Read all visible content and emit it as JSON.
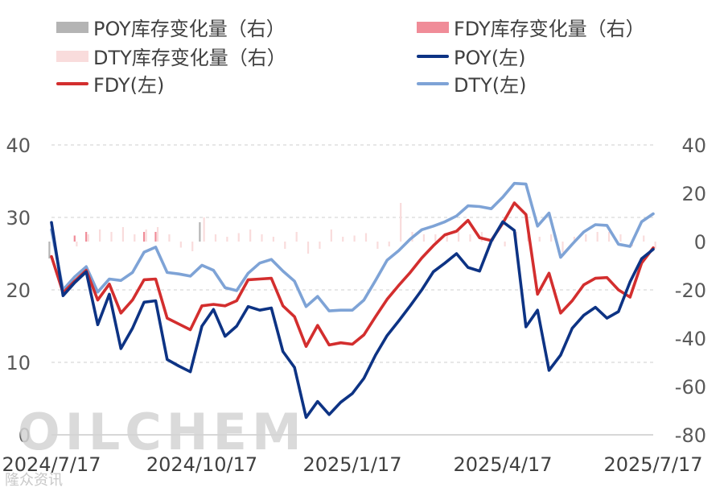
{
  "chart_data": {
    "type": "line",
    "legend": [
      {
        "name": "POY库存变化量（右）",
        "kind": "bar",
        "color": "#b4b4b4"
      },
      {
        "name": "FDY库存变化量（右）",
        "kind": "bar",
        "color": "#f08c98"
      },
      {
        "name": "DTY库存变化量（右）",
        "kind": "bar",
        "color": "#f9dcdc"
      },
      {
        "name": "POY(左)",
        "kind": "line",
        "color": "#0d3384"
      },
      {
        "name": "FDY(左)",
        "kind": "line",
        "color": "#d32e2e"
      },
      {
        "name": "DTY(左)",
        "kind": "line",
        "color": "#7ea3d6"
      }
    ],
    "left_axis": {
      "ylim": [
        0,
        40
      ],
      "ticks": [
        "0",
        "10",
        "20",
        "30",
        "40"
      ]
    },
    "right_axis": {
      "ylim": [
        -80,
        40
      ],
      "ticks": [
        "-80",
        "-60",
        "-40",
        "-20",
        "0",
        "20",
        "40"
      ]
    },
    "x_ticks": [
      "2024/7/17",
      "2024/10/17",
      "2025/1/17",
      "2025/4/17",
      "2025/7/17"
    ],
    "x_range": [
      0,
      52
    ],
    "x_tick_positions": [
      0,
      13,
      26,
      39,
      52
    ],
    "series": [
      {
        "name": "POY(左)",
        "axis": "left",
        "color": "#0d3384",
        "values": [
          29.3,
          19.2,
          21.0,
          22.5,
          15.2,
          19.4,
          11.9,
          14.7,
          18.3,
          18.5,
          10.4,
          9.5,
          8.7,
          15.0,
          17.3,
          13.6,
          15.0,
          17.7,
          17.2,
          17.5,
          11.5,
          9.3,
          2.4,
          4.6,
          2.8,
          4.5,
          5.7,
          7.8,
          11.0,
          13.7,
          15.7,
          17.8,
          20.0,
          22.5,
          23.7,
          25.0,
          23.1,
          22.6,
          26.7,
          29.4,
          28.2,
          14.9,
          17.2,
          8.9,
          11.0,
          14.7,
          16.5,
          17.6,
          16.1,
          17.0,
          21.1,
          24.3,
          25.6
        ]
      },
      {
        "name": "FDY(左)",
        "axis": "left",
        "color": "#d32e2e",
        "values": [
          24.6,
          19.6,
          21.2,
          22.7,
          18.6,
          20.8,
          16.8,
          18.6,
          21.4,
          21.5,
          16.1,
          15.3,
          14.5,
          17.8,
          18.0,
          17.8,
          18.5,
          21.4,
          21.5,
          21.6,
          17.8,
          16.3,
          12.2,
          15.1,
          12.4,
          12.7,
          12.5,
          13.8,
          16.3,
          18.7,
          20.6,
          22.4,
          24.4,
          26.1,
          27.6,
          28.1,
          29.6,
          27.2,
          26.8,
          29.2,
          32.0,
          30.4,
          19.4,
          22.3,
          16.8,
          18.5,
          20.7,
          21.6,
          21.7,
          20.0,
          19.0,
          23.7,
          25.8
        ]
      },
      {
        "name": "DTY(左)",
        "axis": "left",
        "color": "#7ea3d6",
        "values": [
          28.3,
          20.0,
          21.8,
          23.2,
          19.7,
          21.5,
          21.3,
          22.4,
          25.2,
          25.9,
          22.4,
          22.2,
          21.9,
          23.4,
          22.7,
          20.3,
          19.9,
          22.3,
          23.7,
          24.2,
          22.6,
          21.2,
          17.7,
          19.1,
          17.1,
          17.2,
          17.2,
          18.6,
          21.3,
          24.1,
          25.4,
          27.0,
          28.3,
          28.8,
          29.4,
          30.2,
          31.6,
          31.5,
          31.2,
          32.8,
          34.7,
          34.6,
          28.8,
          30.6,
          24.5,
          26.3,
          28.0,
          29.0,
          28.9,
          26.3,
          26.0,
          29.4,
          30.5
        ]
      },
      {
        "name": "POY库存变化量（右）",
        "axis": "right",
        "color": "#b4b4b4",
        "values": [
          -7.0,
          0,
          0,
          0,
          0,
          0,
          0,
          0,
          0,
          0,
          0,
          0,
          0,
          8.0,
          0,
          0,
          0,
          0,
          0,
          0,
          0,
          0,
          0,
          0,
          0,
          0,
          0,
          0,
          0,
          0,
          0,
          0,
          0,
          0,
          0,
          0,
          0,
          0,
          0,
          0,
          0,
          0,
          0,
          0,
          0,
          0,
          0,
          0,
          0,
          0,
          0,
          0,
          0
        ]
      },
      {
        "name": "FDY库存变化量（右）",
        "axis": "right",
        "color": "#f08c98",
        "values": [
          0,
          0,
          2.5,
          4.0,
          0,
          0,
          0,
          0,
          4.0,
          4.0,
          0,
          0,
          0,
          0,
          0,
          0,
          0,
          0,
          0,
          0,
          0,
          0,
          0,
          0,
          0,
          0,
          0,
          0,
          0,
          0,
          0,
          0,
          0,
          0,
          0,
          0,
          0,
          0,
          0,
          0,
          0,
          0,
          0,
          0,
          0,
          0,
          0,
          0,
          0,
          0,
          0,
          0,
          0
        ]
      },
      {
        "name": "DTY库存变化量（右）",
        "axis": "right",
        "color": "#f9dcdc",
        "values": [
          -2.0,
          0,
          -2.0,
          3.0,
          5.0,
          4.0,
          6.0,
          3.0,
          5.0,
          6.0,
          3.0,
          -2.5,
          -4.0,
          10.0,
          3.0,
          2.0,
          3.5,
          5.0,
          3.0,
          2.0,
          -3.0,
          4.0,
          -5.0,
          -3.0,
          5.0,
          2.0,
          2.5,
          3.5,
          -3.0,
          -2.0,
          16.0,
          4.0,
          3.0,
          3.0,
          3.5,
          5.5,
          3.0,
          4.0,
          2.0,
          -2.0,
          4.0,
          2.5,
          2.0,
          3.0,
          -4.5,
          2.0,
          3.0,
          4.0,
          4.0,
          3.0,
          -2.0,
          2.5,
          -3.0
        ]
      }
    ]
  },
  "watermark": {
    "text": "OILCHEM",
    "sub": "隆众资讯"
  }
}
